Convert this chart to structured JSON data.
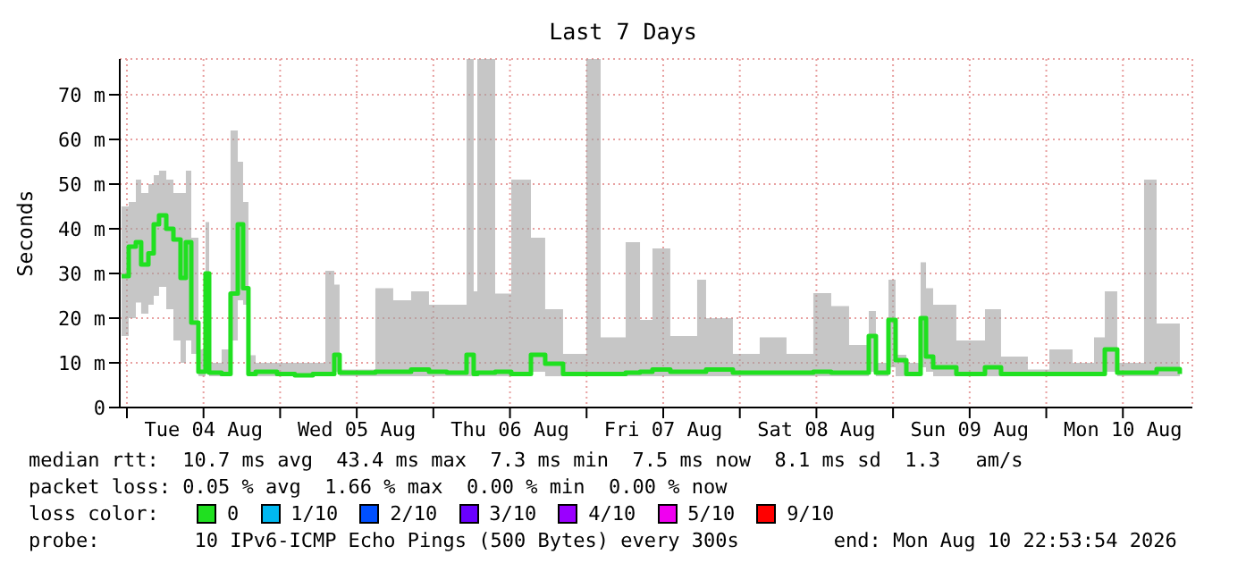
{
  "chart_data": {
    "type": "step",
    "title": "Last 7 Days",
    "ylabel": "Seconds",
    "xlim": [
      "2026-08-03T22:53",
      "2026-08-10T22:53"
    ],
    "xticks": [
      {
        "value": "2026-08-04T00:00",
        "label": null
      },
      {
        "value": "2026-08-04T12:00",
        "label": "Tue 04 Aug"
      },
      {
        "value": "2026-08-05T00:00",
        "label": null
      },
      {
        "value": "2026-08-05T12:00",
        "label": "Wed 05 Aug"
      },
      {
        "value": "2026-08-06T00:00",
        "label": null
      },
      {
        "value": "2026-08-06T12:00",
        "label": "Thu 06 Aug"
      },
      {
        "value": "2026-08-07T00:00",
        "label": null
      },
      {
        "value": "2026-08-07T12:00",
        "label": "Fri 07 Aug"
      },
      {
        "value": "2026-08-08T00:00",
        "label": null
      },
      {
        "value": "2026-08-08T12:00",
        "label": "Sat 08 Aug"
      },
      {
        "value": "2026-08-09T00:00",
        "label": null
      },
      {
        "value": "2026-08-09T12:00",
        "label": "Sun 09 Aug"
      },
      {
        "value": "2026-08-10T00:00",
        "label": null
      },
      {
        "value": "2026-08-10T12:00",
        "label": "Mon 10 Aug"
      }
    ],
    "ylim": [
      0,
      78
    ],
    "yticks": [
      0,
      {
        "value": 10,
        "label": "10 m"
      },
      {
        "value": 20,
        "label": "20 m"
      },
      {
        "value": 30,
        "label": "30 m"
      },
      {
        "value": 40,
        "label": "40 m"
      },
      {
        "value": 50,
        "label": "50 m"
      },
      {
        "value": 60,
        "label": "60 m"
      },
      {
        "value": 70,
        "label": "70 m"
      }
    ],
    "grid": true,
    "legend": false,
    "x": [
      "2026-08-03T23:10",
      "2026-08-04T00:17",
      "2026-08-04T01:24",
      "2026-08-04T02:14",
      "2026-08-04T03:22",
      "2026-08-04T04:12",
      "2026-08-04T05:02",
      "2026-08-04T06:10",
      "2026-08-04T07:17",
      "2026-08-04T08:24",
      "2026-08-04T09:14",
      "2026-08-04T10:05",
      "2026-08-04T11:12",
      "2026-08-04T12:19",
      "2026-08-04T12:53",
      "2026-08-04T14:50",
      "2026-08-04T15:58",
      "2026-08-04T16:14",
      "2026-08-04T17:22",
      "2026-08-04T18:12",
      "2026-08-04T19:02",
      "2026-08-04T20:10",
      "2026-08-04T23:31",
      "2026-08-05T02:19",
      "2026-08-05T05:07",
      "2026-08-05T07:05",
      "2026-08-05T08:29",
      "2026-08-05T09:19",
      "2026-08-05T12:07",
      "2026-08-05T14:55",
      "2026-08-05T17:43",
      "2026-08-05T20:31",
      "2026-08-05T23:19",
      "2026-08-06T02:07",
      "2026-08-06T05:12",
      "2026-08-06T06:19",
      "2026-08-06T06:53",
      "2026-08-06T09:41",
      "2026-08-06T12:12",
      "2026-08-06T15:17",
      "2026-08-06T17:31",
      "2026-08-06T20:19",
      "2026-08-06T23:58",
      "2026-08-07T02:12",
      "2026-08-07T06:07",
      "2026-08-07T08:22",
      "2026-08-07T10:19",
      "2026-08-07T13:07",
      "2026-08-07T17:19",
      "2026-08-07T18:43",
      "2026-08-07T22:55",
      "2026-08-08T03:07",
      "2026-08-08T07:19",
      "2026-08-08T11:31",
      "2026-08-08T14:19",
      "2026-08-08T17:07",
      "2026-08-08T20:12",
      "2026-08-08T21:19",
      "2026-08-08T23:17",
      "2026-08-09T00:24",
      "2026-08-09T02:05",
      "2026-08-09T04:19",
      "2026-08-09T05:10",
      "2026-08-09T06:17",
      "2026-08-09T09:55",
      "2026-08-09T14:24",
      "2026-08-09T16:55",
      "2026-08-09T21:07",
      "2026-08-10T00:29",
      "2026-08-10T04:07",
      "2026-08-10T07:29",
      "2026-08-10T09:10",
      "2026-08-10T11:07",
      "2026-08-10T15:19",
      "2026-08-10T17:17",
      "2026-08-10T20:55"
    ],
    "series": [
      {
        "color": "#20e020",
        "values": [
          29.4,
          36,
          37,
          32,
          34.5,
          41,
          43,
          40,
          37.6,
          29,
          37,
          19,
          8,
          30,
          7.8,
          7.5,
          7.5,
          25.5,
          41,
          26.7,
          7.5,
          8,
          7.5,
          7.2,
          7.5,
          7.5,
          11.8,
          7.8,
          7.8,
          8,
          8,
          8.5,
          8,
          7.8,
          11.8,
          7.5,
          7.8,
          8,
          7.5,
          11.8,
          9.8,
          7.5,
          7.5,
          7.5,
          7.8,
          8,
          8.5,
          8,
          8,
          8.5,
          7.8,
          7.8,
          7.8,
          8,
          7.8,
          7.8,
          16,
          7.8,
          19.6,
          10.6,
          7.5,
          20,
          11.4,
          9,
          7.5,
          9,
          7.5,
          7.5,
          7.5,
          7.5,
          7.5,
          13,
          7.8,
          7.8,
          8.6,
          7.5
        ],
        "lower": [
          16,
          20,
          23.5,
          21,
          23,
          25,
          27,
          22,
          15,
          10,
          15,
          12,
          7,
          8,
          7,
          7,
          7,
          15,
          24,
          23,
          7,
          7,
          7,
          6.8,
          7,
          7,
          8,
          7,
          7,
          7,
          7,
          7,
          7,
          7,
          7,
          7,
          7,
          7,
          7,
          8,
          7,
          7,
          7,
          7,
          7,
          7,
          7,
          7,
          7,
          7,
          7,
          7,
          7,
          7,
          7,
          7,
          8,
          7,
          9,
          7,
          7,
          9,
          8,
          7,
          7,
          7,
          7,
          7,
          7,
          7,
          7,
          8,
          7,
          7,
          7,
          7
        ],
        "upper": [
          45,
          46,
          51,
          48,
          50,
          52,
          53,
          51,
          48,
          48,
          53,
          38,
          13,
          41.5,
          10,
          13,
          10,
          62,
          55,
          46,
          11.7,
          10,
          10,
          10,
          10,
          30.6,
          27.5,
          8.5,
          8.5,
          26.7,
          24,
          26,
          23,
          23,
          78,
          26,
          78,
          25.5,
          51,
          38,
          22,
          12,
          78,
          15.7,
          37,
          19.6,
          35.6,
          16,
          28.6,
          20,
          12,
          15.7,
          12,
          25.6,
          22.7,
          14,
          21.6,
          10,
          28.6,
          11.8,
          10,
          32.5,
          26.7,
          23,
          15,
          22,
          11.4,
          8.5,
          13,
          10,
          15.7,
          26,
          10,
          51,
          18.8,
          8.5
        ]
      }
    ],
    "annotations": [
      "median rtt:  10.7 ms avg  43.4 ms max  7.3 ms min  7.5 ms now  8.1 ms sd  1.3   am/s",
      "packet loss: 0.05 % avg  1.66 % max  0.00 % min  0.00 % now",
      "loss color:",
      "0",
      "1/10",
      "2/10",
      "3/10",
      "4/10",
      "5/10",
      "9/10",
      "probe:        10 IPv6-ICMP Echo Pings (500 Bytes) every 300s        end: Mon Aug 10 22:53:54 2026"
    ]
  }
}
